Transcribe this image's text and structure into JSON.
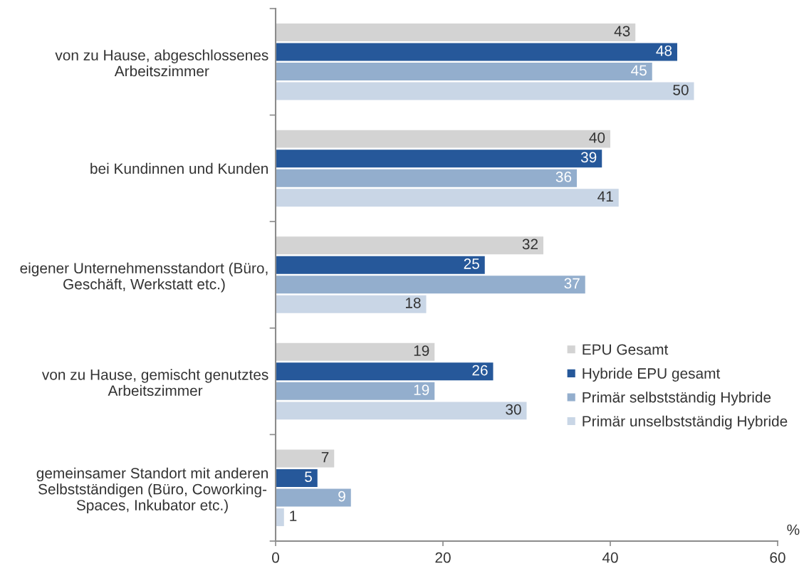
{
  "chart_data": {
    "type": "bar",
    "orientation": "horizontal",
    "categories": [
      "von zu Hause, abgeschlossenes\nArbeitszimmer",
      "bei Kundinnen und Kunden",
      "eigener Unternehmensstandort (Büro,\nGeschäft, Werkstatt etc.)",
      "von zu Hause, gemischt genutztes\nArbeitszimmer",
      "gemeinsamer Standort mit anderen\nSelbstständigen (Büro, Coworking-\nSpaces, Inkubator etc.)"
    ],
    "series": [
      {
        "name": "EPU Gesamt",
        "color": "#d3d3d3",
        "values": [
          43,
          40,
          32,
          19,
          7
        ]
      },
      {
        "name": "Hybride EPU gesamt",
        "color": "#26589a",
        "values": [
          48,
          39,
          25,
          26,
          5
        ]
      },
      {
        "name": "Primär selbstständig Hybride",
        "color": "#93aecd",
        "values": [
          45,
          36,
          37,
          19,
          9
        ]
      },
      {
        "name": "Primär unselbstständig Hybride",
        "color": "#c9d6e6",
        "values": [
          50,
          41,
          18,
          30,
          1
        ]
      }
    ],
    "xlabel": "%",
    "xlim": [
      0,
      60
    ],
    "xticks": [
      0,
      20,
      40,
      60
    ],
    "data_labels": true,
    "legend": "right"
  }
}
